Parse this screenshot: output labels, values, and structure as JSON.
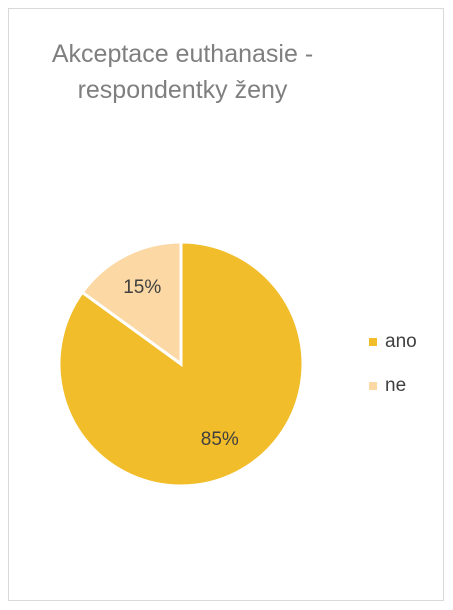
{
  "chart_data": {
    "type": "pie",
    "title": "Akceptace euthanasie - respondentky ženy",
    "categories": [
      "ano",
      "ne"
    ],
    "values": [
      85,
      15
    ],
    "value_labels": [
      "85%",
      "15%"
    ],
    "colors": [
      "#f2bd2a",
      "#fbd8a4"
    ],
    "legend": "right"
  }
}
